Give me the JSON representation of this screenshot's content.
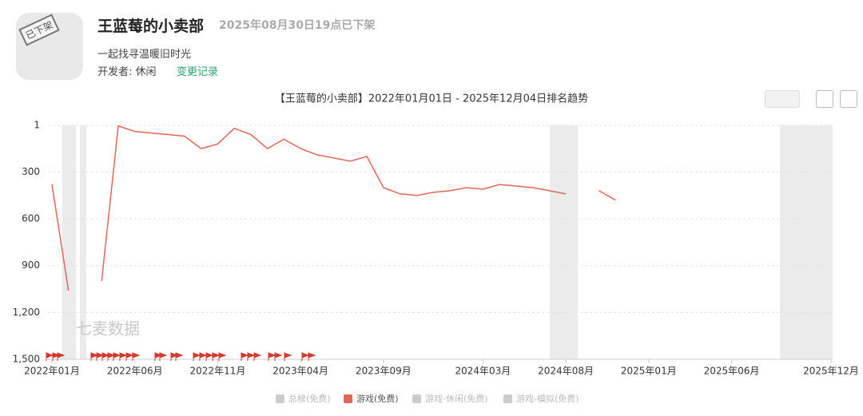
{
  "header": {
    "title": "王蓝莓的小卖部",
    "status": "2025年08月30日19点已下架",
    "subtitle": "一起找寻温暖旧时光",
    "developer_label": "开发者:",
    "developer": "休闲",
    "history_link": "变更记录",
    "icon_stamp": "已下架"
  },
  "chart_data": {
    "type": "line",
    "title": "【王蓝莓的小卖部】2022年01月01日 - 2025年12月04日排名趋势",
    "watermark": "七麦数据",
    "x": [
      "2022-01",
      "2022-02",
      "2022-03",
      "2022-04",
      "2022-05",
      "2022-06",
      "2022-07",
      "2022-08",
      "2022-09",
      "2022-10",
      "2022-11",
      "2022-12",
      "2023-01",
      "2023-02",
      "2023-03",
      "2023-04",
      "2023-05",
      "2023-06",
      "2023-07",
      "2023-08",
      "2023-09",
      "2023-10",
      "2023-11",
      "2023-12",
      "2024-01",
      "2024-02",
      "2024-03",
      "2024-04",
      "2024-05",
      "2024-06",
      "2024-07",
      "2024-08",
      "2024-09",
      "2024-10",
      "2024-11"
    ],
    "series": [
      {
        "name": "游戏(免费)",
        "color": "#e0665a",
        "values": [
          380,
          1060,
          null,
          1000,
          5,
          40,
          50,
          60,
          70,
          150,
          120,
          20,
          60,
          150,
          90,
          150,
          190,
          210,
          230,
          200,
          400,
          440,
          450,
          430,
          420,
          400,
          410,
          380,
          390,
          400,
          420,
          440,
          null,
          420,
          480
        ]
      }
    ],
    "inactive_legend": [
      "总榜(免费)",
      "游戏-休闲(免费)",
      "游戏-模拟(免费)"
    ],
    "ylim": [
      1,
      1500
    ],
    "inverted": true,
    "grid": true,
    "yticks": [
      1,
      300,
      600,
      900,
      {
        "value": 1200,
        "label": "1,200"
      },
      {
        "value": 1500,
        "label": "1,500"
      }
    ],
    "xlim": [
      "2022-01",
      "2025-12"
    ],
    "xticks": [
      {
        "value": "2022-01",
        "label": "2022年01月"
      },
      {
        "value": "2022-06",
        "label": "2022年06月"
      },
      {
        "value": "2022-11",
        "label": "2022年11月"
      },
      {
        "value": "2023-04",
        "label": "2023年04月"
      },
      {
        "value": "2023-09",
        "label": "2023年09月"
      },
      {
        "value": "2024-03",
        "label": "2024年03月"
      },
      {
        "value": "2024-08",
        "label": "2024年08月"
      },
      {
        "value": "2025-01",
        "label": "2025年01月"
      },
      {
        "value": "2025-06",
        "label": "2025年06月"
      },
      {
        "value": "2025-12",
        "label": "2025年12月"
      }
    ]
  }
}
